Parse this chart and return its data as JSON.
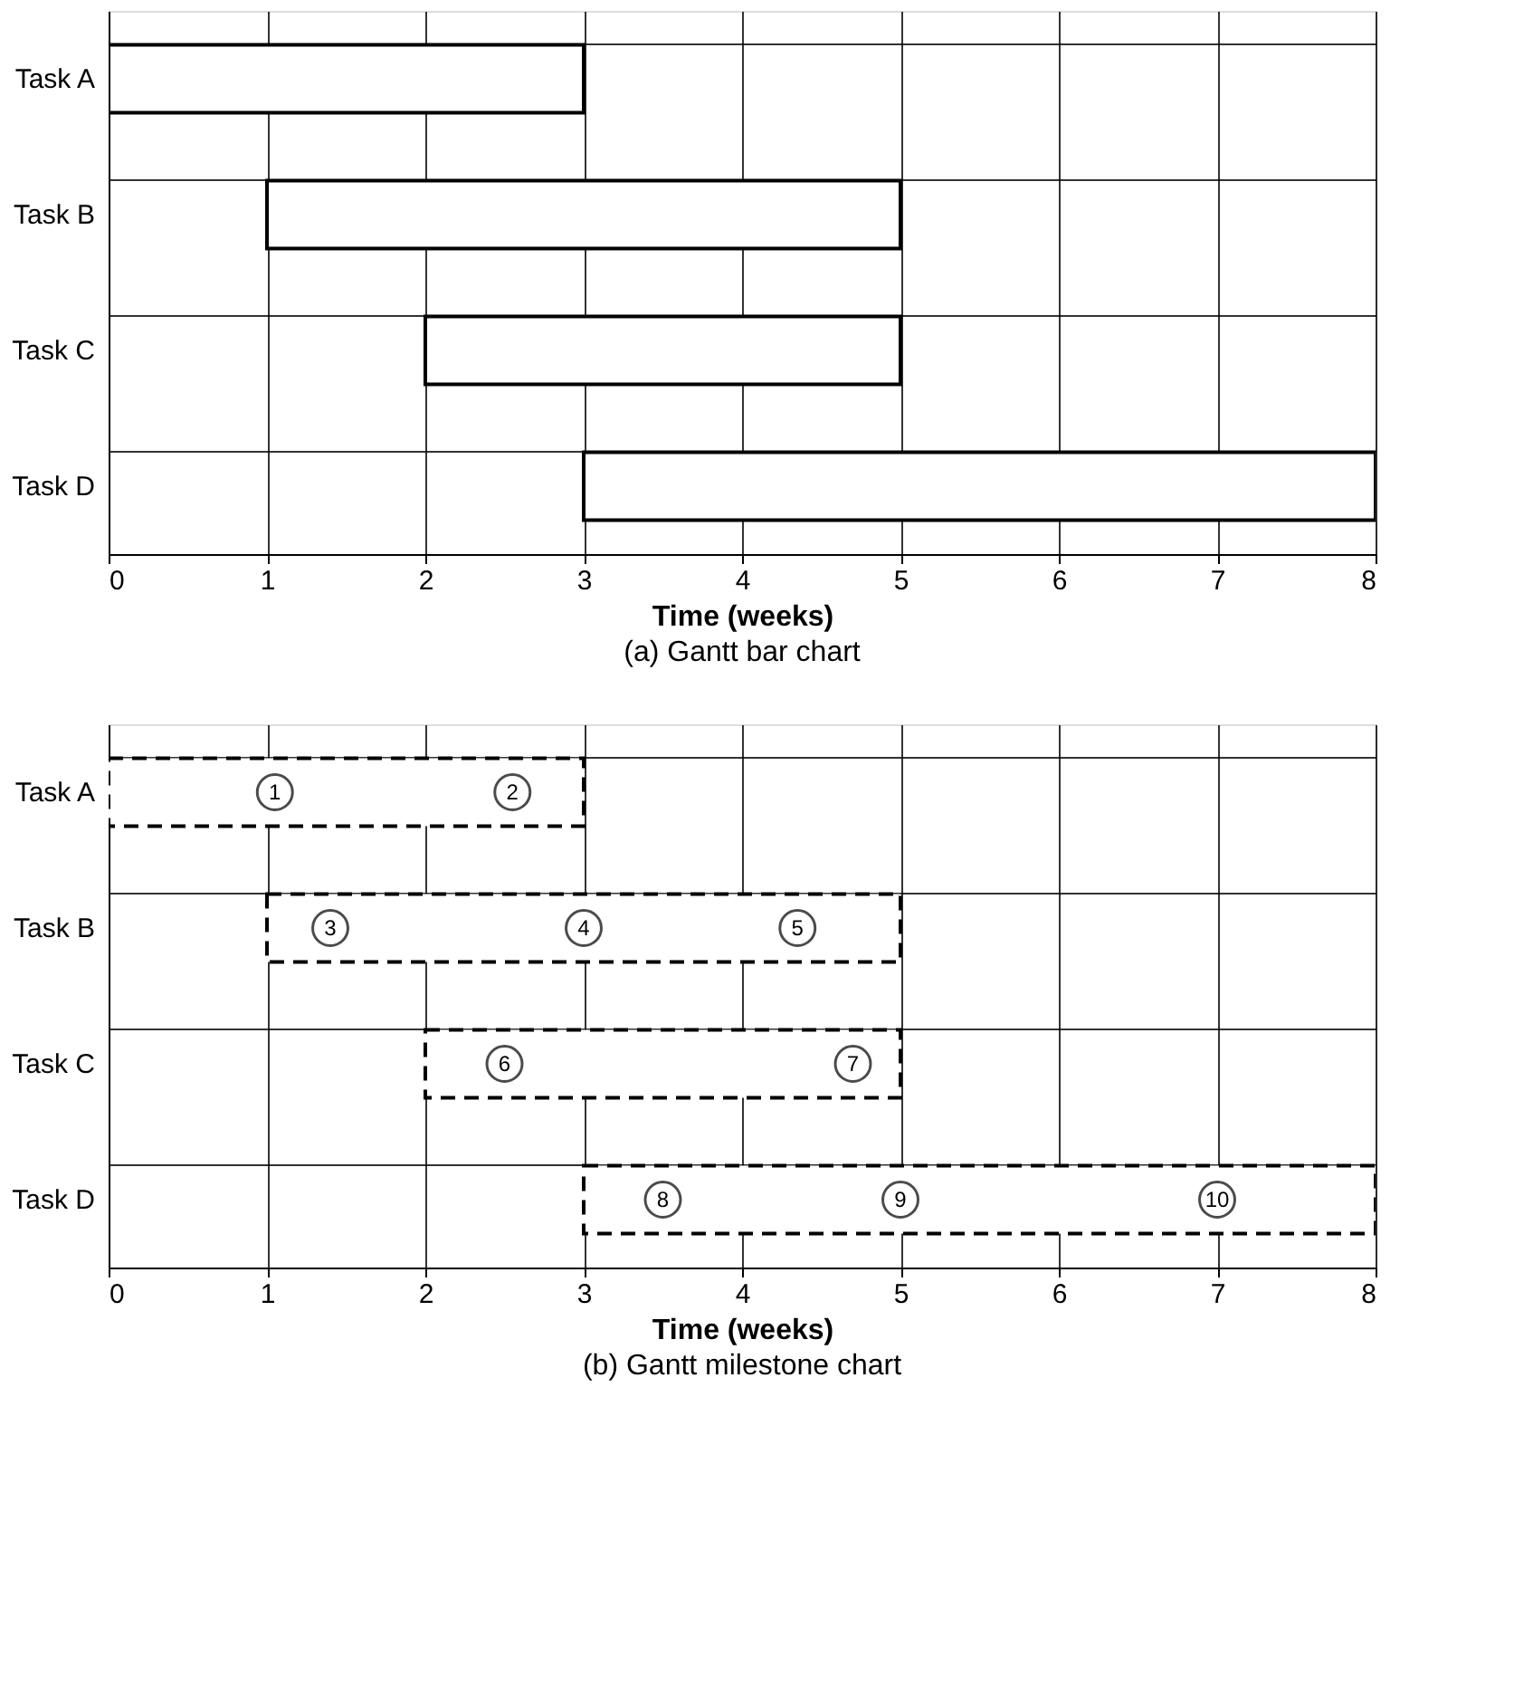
{
  "chart_data": [
    {
      "type": "bar",
      "orientation": "horizontal",
      "title": "(a) Gantt bar chart",
      "xlabel": "Time (weeks)",
      "categories": [
        "Task A",
        "Task B",
        "Task C",
        "Task D"
      ],
      "base": [
        0,
        1,
        2,
        3
      ],
      "values": [
        3,
        4,
        3,
        5
      ],
      "color": "#ffffff",
      "xlim": [
        0,
        8
      ],
      "xticks": [
        0,
        1,
        2,
        3,
        4,
        5,
        6,
        7,
        8
      ],
      "grid": true,
      "line_style": "solid"
    },
    {
      "type": "bar",
      "orientation": "horizontal",
      "title": "(b) Gantt milestone chart",
      "xlabel": "Time (weeks)",
      "categories": [
        "Task A",
        "Task B",
        "Task C",
        "Task D"
      ],
      "base": [
        0,
        1,
        2,
        3
      ],
      "values": [
        3,
        4,
        3,
        5
      ],
      "color": "#ffffff",
      "xlim": [
        0,
        8
      ],
      "xticks": [
        0,
        1,
        2,
        3,
        4,
        5,
        6,
        7,
        8
      ],
      "grid": true,
      "line_style": "dashed",
      "series": [
        {
          "type": "scatter",
          "marker": "circle",
          "color": "#000000",
          "name": "1",
          "values": [
            1.05,
            null,
            null,
            null
          ]
        },
        {
          "type": "scatter",
          "marker": "circle",
          "color": "#000000",
          "name": "2",
          "values": [
            2.55,
            null,
            null,
            null
          ]
        },
        {
          "type": "scatter",
          "marker": "circle",
          "color": "#000000",
          "name": "3",
          "values": [
            null,
            1.4,
            null,
            null
          ]
        },
        {
          "type": "scatter",
          "marker": "circle",
          "color": "#000000",
          "name": "4",
          "values": [
            null,
            3.0,
            null,
            null
          ]
        },
        {
          "type": "scatter",
          "marker": "circle",
          "color": "#000000",
          "name": "5",
          "values": [
            null,
            4.35,
            null,
            null
          ]
        },
        {
          "type": "scatter",
          "marker": "circle",
          "color": "#000000",
          "name": "6",
          "values": [
            null,
            null,
            2.5,
            null
          ]
        },
        {
          "type": "scatter",
          "marker": "circle",
          "color": "#000000",
          "name": "7",
          "values": [
            null,
            null,
            4.7,
            null
          ]
        },
        {
          "type": "scatter",
          "marker": "circle",
          "color": "#000000",
          "name": "8",
          "values": [
            null,
            null,
            null,
            3.5
          ]
        },
        {
          "type": "scatter",
          "marker": "circle",
          "color": "#000000",
          "name": "9",
          "values": [
            null,
            null,
            null,
            5.0
          ]
        },
        {
          "type": "scatter",
          "marker": "circle",
          "color": "#000000",
          "name": "10",
          "values": [
            null,
            null,
            null,
            7.0
          ]
        }
      ]
    }
  ]
}
